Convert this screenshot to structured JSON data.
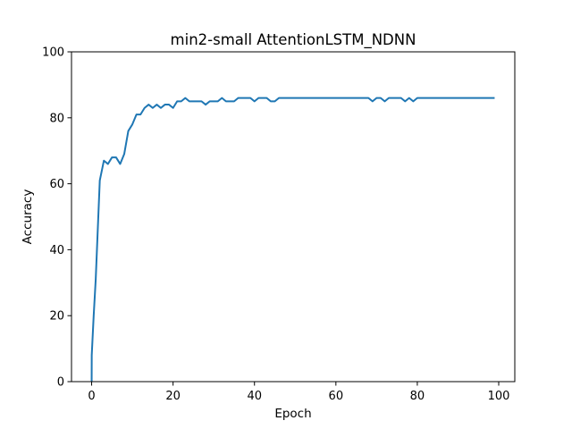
{
  "chart_data": {
    "type": "line",
    "title": "min2-small AttentionLSTM_NDNN",
    "xlabel": "Epoch",
    "ylabel": "Accuracy",
    "xlim": [
      -4.95,
      103.95
    ],
    "ylim": [
      0,
      100
    ],
    "xticks": [
      0,
      20,
      40,
      60,
      80,
      100
    ],
    "yticks": [
      0,
      20,
      40,
      60,
      80,
      100
    ],
    "grid": false,
    "series": [
      {
        "color": "#1f77b4",
        "x": [
          0,
          0.02,
          0.5,
          1,
          1.5,
          2,
          3,
          4,
          5,
          6,
          7,
          8,
          9,
          10,
          11,
          12,
          13,
          14,
          15,
          16,
          17,
          18,
          19,
          20,
          21,
          22,
          23,
          24,
          25,
          26,
          27,
          28,
          29,
          30,
          31,
          32,
          33,
          34,
          35,
          36,
          37,
          38,
          39,
          40,
          41,
          42,
          43,
          44,
          45,
          46,
          47,
          48,
          49,
          50,
          51,
          52,
          53,
          54,
          55,
          56,
          57,
          58,
          59,
          60,
          61,
          62,
          63,
          64,
          65,
          66,
          67,
          68,
          69,
          70,
          71,
          72,
          73,
          74,
          75,
          76,
          77,
          78,
          79,
          80,
          81,
          82,
          83,
          84,
          85,
          86,
          87,
          88,
          89,
          90,
          91,
          92,
          93,
          94,
          95,
          96,
          97,
          98,
          99
        ],
        "y": [
          0,
          8,
          20,
          31,
          46,
          61,
          67,
          66,
          68,
          68,
          66,
          69,
          76,
          78,
          81,
          81,
          83,
          84,
          83,
          84,
          83,
          84,
          84,
          83,
          85,
          85,
          86,
          85,
          85,
          85,
          85,
          84,
          85,
          85,
          85,
          86,
          85,
          85,
          85,
          86,
          86,
          86,
          86,
          85,
          86,
          86,
          86,
          85,
          85,
          86,
          86,
          86,
          86,
          86,
          86,
          86,
          86,
          86,
          86,
          86,
          86,
          86,
          86,
          86,
          86,
          86,
          86,
          86,
          86,
          86,
          86,
          86,
          85,
          86,
          86,
          85,
          86,
          86,
          86,
          86,
          85,
          86,
          85,
          86,
          86,
          86,
          86,
          86,
          86,
          86,
          86,
          86,
          86,
          86,
          86,
          86,
          86,
          86,
          86,
          86,
          86,
          86,
          86
        ]
      }
    ]
  }
}
